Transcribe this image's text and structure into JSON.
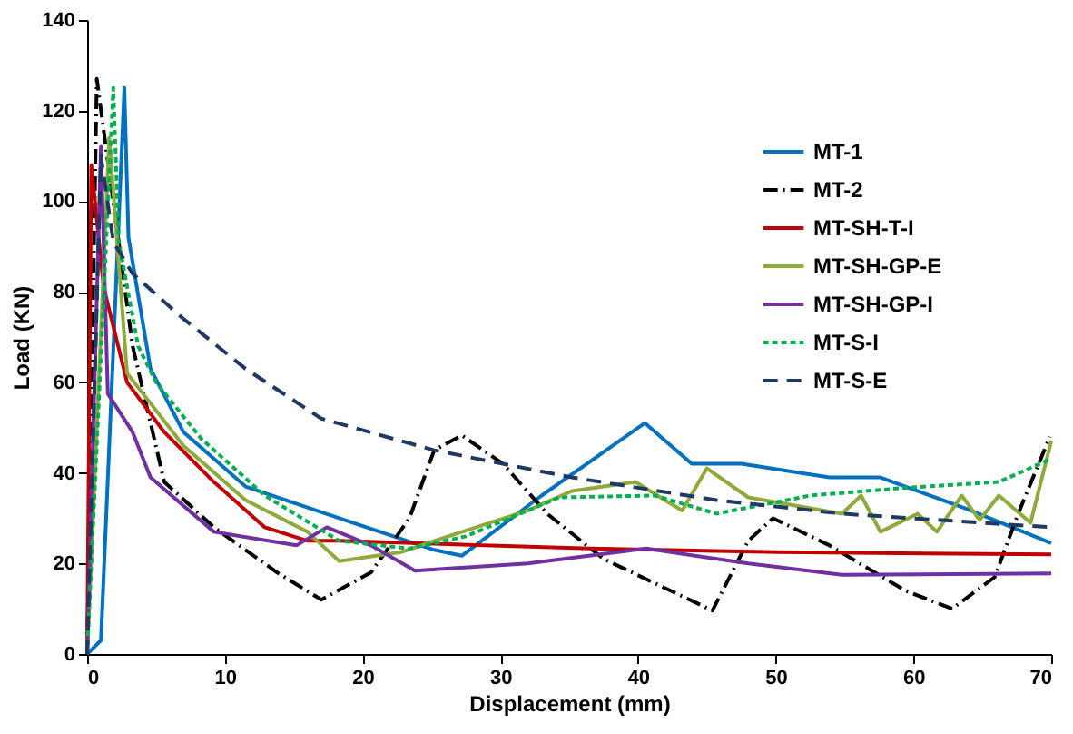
{
  "chart_data": {
    "type": "line",
    "xlabel": "Displacement (mm)",
    "ylabel": "Load (KN)",
    "xlim": [
      0,
      70
    ],
    "ylim": [
      0,
      140
    ],
    "xticks": [
      0,
      10,
      20,
      30,
      40,
      50,
      60,
      70
    ],
    "yticks": [
      0,
      20,
      40,
      60,
      80,
      100,
      120,
      140
    ],
    "grid": false,
    "legend": "top right",
    "marker": "none",
    "series": [
      {
        "name": "MT-1",
        "color": "#0070c0",
        "line_style": "solid",
        "x": [
          0,
          1,
          1.8,
          2.7,
          3,
          4.6,
          7,
          11.5,
          18.3,
          25.2,
          27.2,
          33,
          40.5,
          43.9,
          47.5,
          53.9,
          57.6,
          63.9,
          70
        ],
        "values": [
          0,
          3,
          60,
          125,
          92,
          63,
          49,
          37,
          30,
          23,
          21.7,
          35,
          51,
          42,
          42,
          39,
          39,
          32,
          24.5
        ]
      },
      {
        "name": "MT-2",
        "color": "#000000",
        "line_style": "dashdot",
        "x": [
          0,
          0.7,
          3.3,
          5.6,
          9.2,
          13.8,
          17,
          20.6,
          23.4,
          25.2,
          27.2,
          30.2,
          33.4,
          37.5,
          45.4,
          48,
          49.8,
          53.9,
          59.4,
          62.8,
          65.9,
          67.6,
          69.9
        ],
        "values": [
          0,
          127,
          68,
          38,
          28,
          18,
          12,
          18,
          30,
          45,
          48.3,
          42,
          31,
          21,
          9.6,
          25,
          30,
          24,
          14,
          10,
          17,
          31,
          48
        ]
      },
      {
        "name": "MT-SH-T-I",
        "color": "#c00000",
        "line_style": "solid",
        "x": [
          0,
          0.3,
          1.2,
          2.9,
          5.6,
          9.2,
          12.9,
          16,
          18.3,
          36.5,
          50.2,
          70
        ],
        "values": [
          0,
          108,
          81,
          60,
          49,
          38,
          28,
          25,
          25,
          23.3,
          22.5,
          22
        ]
      },
      {
        "name": "MT-SH-GP-E",
        "color": "#8faa3c",
        "line_style": "solid",
        "x": [
          0,
          1.6,
          2.9,
          7,
          11.5,
          16,
          18.3,
          22.8,
          25.2,
          32,
          35.2,
          39.8,
          43.2,
          45,
          48,
          54.8,
          56.2,
          57.6,
          60.3,
          61.7,
          63.5,
          64.8,
          66.2,
          68.5,
          70
        ],
        "values": [
          0,
          114,
          62,
          46,
          34,
          27,
          20.5,
          22.5,
          25,
          31.7,
          36,
          38,
          31.7,
          41,
          34.6,
          31,
          35,
          27,
          31,
          27,
          35,
          29.6,
          35,
          29,
          47
        ]
      },
      {
        "name": "MT-SH-GP-I",
        "color": "#7030a0",
        "line_style": "solid",
        "x": [
          0,
          1,
          1.5,
          3.3,
          4.6,
          9.2,
          15.2,
          17.4,
          20.6,
          23.8,
          32,
          40.6,
          48,
          54.8,
          70
        ],
        "values": [
          0,
          112,
          57.5,
          49,
          39,
          27,
          24,
          28,
          24,
          18.4,
          20,
          23.3,
          20,
          17.5,
          17.8
        ]
      },
      {
        "name": "MT-S-I",
        "color": "#00b050",
        "line_style": "dotted",
        "x": [
          0,
          1.9,
          2.3,
          3.7,
          5,
          8.3,
          12.9,
          18.3,
          23.4,
          27.5,
          34.3,
          41.2,
          45.7,
          52.5,
          59.4,
          66.2,
          69.9
        ],
        "values": [
          0,
          125,
          91,
          68,
          60,
          47.5,
          35,
          25,
          23.3,
          26,
          34.6,
          35,
          31,
          35,
          36.7,
          38,
          43
        ]
      },
      {
        "name": "MT-S-E",
        "color": "#1f3864",
        "line_style": "dashed",
        "x": [
          0,
          1,
          1.9,
          3.3,
          7,
          11.5,
          17,
          25.2,
          35.2,
          45.7,
          54.8,
          70
        ],
        "values": [
          0,
          110,
          91,
          84,
          74,
          63,
          52,
          45,
          39,
          34,
          31,
          28
        ]
      }
    ]
  }
}
